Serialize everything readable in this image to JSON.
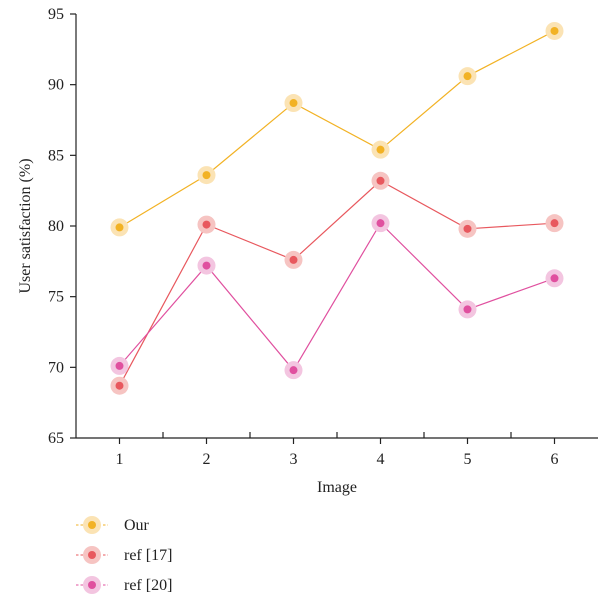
{
  "chart_data": {
    "type": "line",
    "title": "",
    "xlabel": "Image",
    "ylabel": "User satisfaction (%)",
    "x": [
      1,
      2,
      3,
      4,
      5,
      6
    ],
    "xlim": [
      0.5,
      6.5
    ],
    "ylim": [
      65,
      95
    ],
    "yticks": [
      65,
      70,
      75,
      80,
      85,
      90,
      95
    ],
    "grid": false,
    "legend_position": "bottom-left",
    "series": [
      {
        "name": "Our",
        "color": "#f2b224",
        "halo": "#fbe3b4",
        "values": [
          79.9,
          83.6,
          88.7,
          85.4,
          90.6,
          93.8
        ]
      },
      {
        "name": "ref [17]",
        "color": "#e8585e",
        "halo": "#f6c4c2",
        "values": [
          68.7,
          80.1,
          77.6,
          83.2,
          79.8,
          80.2
        ]
      },
      {
        "name": "ref [20]",
        "color": "#e0509f",
        "halo": "#f3c5e0",
        "values": [
          70.1,
          77.2,
          69.8,
          80.2,
          74.1,
          76.3
        ]
      }
    ]
  }
}
